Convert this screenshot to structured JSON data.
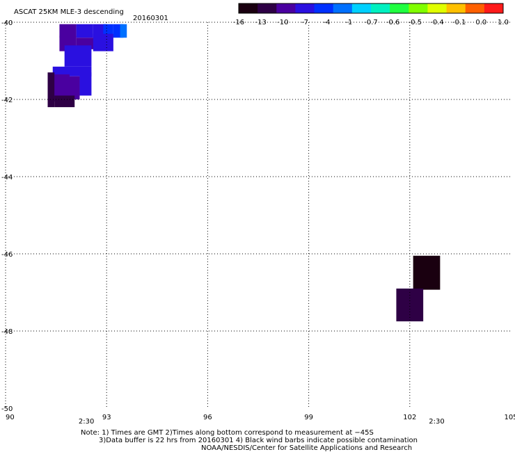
{
  "chart_data": {
    "type": "heatmap",
    "title": "ASCAT 25KM MLE-3 descending",
    "date": "20160301",
    "xlim": [
      90,
      105
    ],
    "ylim": [
      -50,
      -40
    ],
    "x_ticks": [
      90,
      93,
      96,
      99,
      102,
      105
    ],
    "x_tick_labels": [
      "90",
      "93",
      "96",
      "99",
      "102",
      "105"
    ],
    "y_ticks": [
      -40,
      -42,
      -44,
      -46,
      -48,
      -50
    ],
    "y_tick_labels": [
      "-40",
      "-42",
      "-44",
      "-46",
      "-48",
      "-50"
    ],
    "grid": true,
    "grid_style": "dotted",
    "colorbar": {
      "labels": [
        "-16",
        "-13",
        "-10",
        "-7",
        "-4",
        "-1",
        "-0.7",
        "-0.6",
        "-0.5",
        "-0.4",
        "-0.1",
        "0.0",
        "1.0"
      ],
      "colors": [
        "#1a0010",
        "#2e0045",
        "#4a00a0",
        "#2a10e0",
        "#0030ff",
        "#0070ff",
        "#00d0ff",
        "#00f0c0",
        "#20ff40",
        "#80ff00",
        "#e0ff00",
        "#ffc000",
        "#ff6000",
        "#ff1a1a"
      ],
      "placement": "top-right"
    },
    "time_labels": [
      {
        "text": "2:30",
        "x": 92.4
      },
      {
        "text": "2:30",
        "x": 102.8
      }
    ],
    "cells": [
      {
        "lon": 91.6,
        "lat": -40.05,
        "w": 0.5,
        "h": 0.35,
        "value": -12
      },
      {
        "lon": 92.1,
        "lat": -40.05,
        "w": 0.5,
        "h": 0.35,
        "value": -9
      },
      {
        "lon": 92.6,
        "lat": -40.05,
        "w": 0.4,
        "h": 0.35,
        "value": -8
      },
      {
        "lon": 92.9,
        "lat": -40.05,
        "w": 0.3,
        "h": 0.35,
        "value": -6
      },
      {
        "lon": 93.2,
        "lat": -40.05,
        "w": 0.3,
        "h": 0.35,
        "value": -4
      },
      {
        "lon": 93.4,
        "lat": -40.05,
        "w": 0.2,
        "h": 0.35,
        "value": -2
      },
      {
        "lon": 91.6,
        "lat": -40.35,
        "w": 0.5,
        "h": 0.4,
        "value": -10
      },
      {
        "lon": 92.1,
        "lat": -40.4,
        "w": 0.6,
        "h": 0.3,
        "value": -11
      },
      {
        "lon": 92.6,
        "lat": -40.3,
        "w": 0.6,
        "h": 0.45,
        "value": -8
      },
      {
        "lon": 91.75,
        "lat": -40.6,
        "w": 0.8,
        "h": 0.55,
        "value": -8
      },
      {
        "lon": 91.4,
        "lat": -41.15,
        "w": 1.15,
        "h": 0.25,
        "value": -8
      },
      {
        "lon": 91.4,
        "lat": -41.35,
        "w": 0.5,
        "h": 0.7,
        "value": -12
      },
      {
        "lon": 91.85,
        "lat": -41.4,
        "w": 0.35,
        "h": 0.6,
        "value": -11
      },
      {
        "lon": 92.2,
        "lat": -41.3,
        "w": 0.35,
        "h": 0.6,
        "value": -9
      },
      {
        "lon": 91.25,
        "lat": -41.3,
        "w": 0.2,
        "h": 0.9,
        "value": -14
      },
      {
        "lon": 91.45,
        "lat": -41.9,
        "w": 0.6,
        "h": 0.3,
        "value": -13
      },
      {
        "lon": 102.1,
        "lat": -46.05,
        "w": 0.8,
        "h": 0.88,
        "value": -16
      },
      {
        "lon": 101.6,
        "lat": -46.9,
        "w": 0.8,
        "h": 0.85,
        "value": -14
      }
    ]
  },
  "notes": {
    "line1": "Note: 1) Times are GMT 2)Times along bottom correspond to measurement at −45S",
    "line2": "3)Data buffer is 22 hrs from 20160301 4) Black wind barbs indicate possible contamination",
    "line3": "NOAA/NESDIS/Center for Satellite Applications and Research"
  }
}
